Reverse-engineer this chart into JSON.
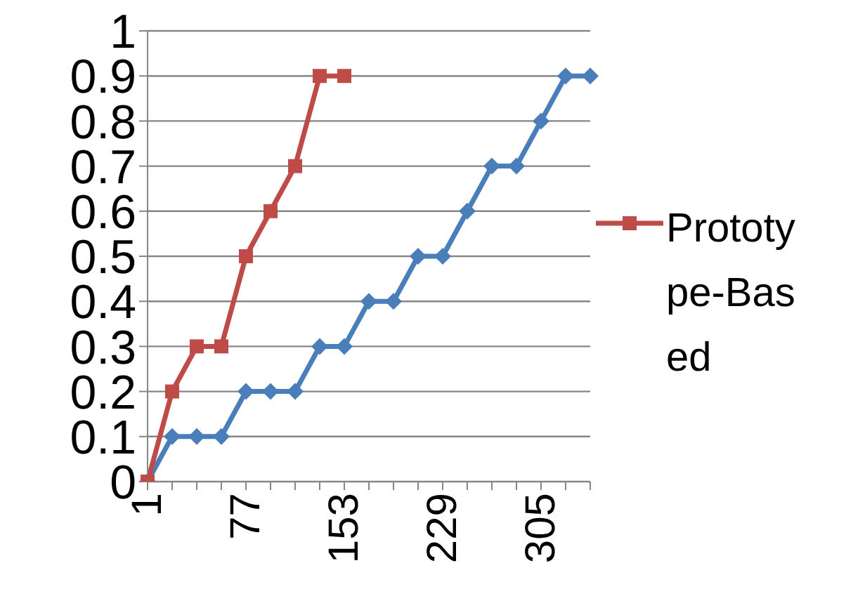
{
  "chart_data": {
    "type": "line",
    "categories": [
      "1",
      null,
      null,
      null,
      "77",
      null,
      null,
      null,
      "153",
      null,
      null,
      null,
      "229",
      null,
      null,
      null,
      "305",
      null,
      null
    ],
    "series": [
      {
        "color": "#4a7ebb",
        "marker": "diamond",
        "values": [
          0,
          0.1,
          0.1,
          0.1,
          0.2,
          0.2,
          0.2,
          0.3,
          0.3,
          0.4,
          0.4,
          0.5,
          0.5,
          0.6,
          0.7,
          0.7,
          0.8,
          0.9,
          0.9
        ]
      },
      {
        "name": "Prototype-Based",
        "color": "#be4b48",
        "marker": "square",
        "values": [
          0,
          0.2,
          0.3,
          0.3,
          0.5,
          0.6,
          0.7,
          0.9,
          0.9,
          null,
          null,
          null,
          null,
          null,
          null,
          null,
          null,
          null,
          null
        ]
      }
    ],
    "ylim": [
      0,
      1
    ],
    "yticks": [
      0,
      0.1,
      0.2,
      0.3,
      0.4,
      0.5,
      0.6,
      0.7,
      0.8,
      0.9,
      1
    ],
    "grid": "y",
    "legend": "right"
  }
}
